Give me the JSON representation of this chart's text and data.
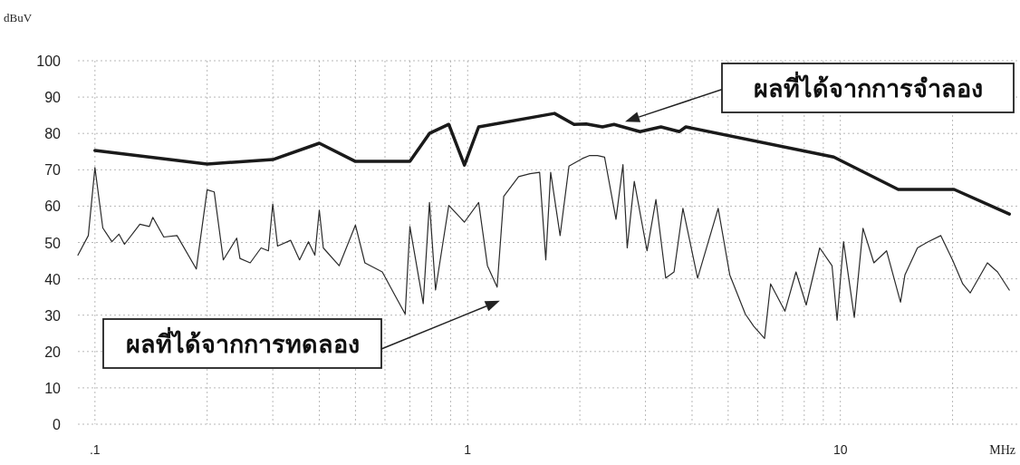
{
  "chart_data": {
    "type": "line",
    "xlabel": "MHz",
    "ylabel": "dBuV",
    "log": "x",
    "grid": true,
    "xlim": [
      0.09,
      30
    ],
    "ylim": [
      0,
      100
    ],
    "xticks": [
      {
        "value": 0.1,
        "label": ".1"
      },
      {
        "value": 0.2,
        "label": null
      },
      {
        "value": 0.3,
        "label": null
      },
      {
        "value": 0.4,
        "label": null
      },
      {
        "value": 0.5,
        "label": null
      },
      {
        "value": 0.6,
        "label": null
      },
      {
        "value": 0.7,
        "label": null
      },
      {
        "value": 0.8,
        "label": null
      },
      {
        "value": 0.9,
        "label": null
      },
      1,
      {
        "value": 2,
        "label": null
      },
      {
        "value": 3,
        "label": null
      },
      {
        "value": 4,
        "label": null
      },
      {
        "value": 5,
        "label": null
      },
      {
        "value": 6,
        "label": null
      },
      {
        "value": 7,
        "label": null
      },
      {
        "value": 8,
        "label": null
      },
      {
        "value": 9,
        "label": null
      },
      10,
      {
        "value": 20,
        "label": null
      }
    ],
    "yticks": [
      0,
      10,
      20,
      30,
      40,
      50,
      60,
      70,
      80,
      90,
      100
    ],
    "series": [
      {
        "name": "ผลที่ได้จากการจำลอง",
        "color": "#1a1a1a",
        "x": [
          0.1,
          0.2,
          0.3,
          0.4,
          0.5,
          0.7,
          0.79,
          0.89,
          0.98,
          1.07,
          1.71,
          1.93,
          2.08,
          2.3,
          2.47,
          2.9,
          3.3,
          3.7,
          3.85,
          9.6,
          14.3,
          20.2,
          28.4
        ],
        "values": [
          75.3,
          71.6,
          72.8,
          77.3,
          72.3,
          72.3,
          80,
          82.5,
          71.3,
          81.8,
          85.5,
          82.5,
          82.6,
          81.8,
          82.5,
          80.5,
          81.8,
          80.5,
          81.8,
          73.5,
          64.6,
          64.6,
          57.8
        ]
      },
      {
        "name": "ผลที่ได้จากการทดลอง",
        "color": "#2b2b2b",
        "x": [
          0.09,
          0.096,
          0.1,
          0.105,
          0.111,
          0.116,
          0.12,
          0.132,
          0.14,
          0.143,
          0.153,
          0.166,
          0.187,
          0.2,
          0.209,
          0.221,
          0.24,
          0.245,
          0.261,
          0.279,
          0.292,
          0.3,
          0.309,
          0.335,
          0.354,
          0.374,
          0.389,
          0.4,
          0.41,
          0.452,
          0.5,
          0.53,
          0.59,
          0.64,
          0.68,
          0.7,
          0.76,
          0.79,
          0.82,
          0.89,
          0.98,
          1.07,
          1.13,
          1.2,
          1.25,
          1.37,
          1.47,
          1.56,
          1.62,
          1.67,
          1.77,
          1.87,
          2.03,
          2.12,
          2.23,
          2.33,
          2.5,
          2.61,
          2.68,
          2.8,
          3.03,
          3.2,
          3.4,
          3.58,
          3.78,
          4.14,
          4.7,
          5.05,
          5.56,
          5.86,
          6.26,
          6.5,
          7.1,
          7.6,
          8.1,
          8.8,
          9.5,
          9.8,
          10.2,
          10.9,
          11.5,
          12.3,
          13.3,
          14.5,
          14.9,
          16.1,
          17.2,
          18.6,
          20,
          21.3,
          22.3,
          24.8,
          26.4,
          28.4
        ],
        "values": [
          46.5,
          51.9,
          70.6,
          54,
          50.2,
          52.3,
          49.5,
          55,
          54.4,
          56.9,
          51.5,
          51.9,
          42.7,
          64.5,
          63.9,
          45.2,
          51.2,
          45.6,
          44.4,
          48.5,
          47.7,
          60.6,
          49,
          50.6,
          45.2,
          50.2,
          46.5,
          58.9,
          48.5,
          43.6,
          54.8,
          44.4,
          41.9,
          35.2,
          30.3,
          54.4,
          33.2,
          61,
          36.9,
          60.2,
          55.6,
          61,
          43.6,
          37.7,
          62.7,
          68.1,
          68.9,
          69.3,
          45.2,
          69.3,
          51.9,
          71,
          73.1,
          73.9,
          73.9,
          73.5,
          56.4,
          71.4,
          48.5,
          66.8,
          47.7,
          61.8,
          40.2,
          41.9,
          59.4,
          40.2,
          59.4,
          41.1,
          30.3,
          26.9,
          23.6,
          38.6,
          31.1,
          41.9,
          32.8,
          48.5,
          43.6,
          28.6,
          50.2,
          29.4,
          53.9,
          44.4,
          47.7,
          33.6,
          41.1,
          48.5,
          50.2,
          51.9,
          45.2,
          38.6,
          36.1,
          44.4,
          41.9,
          36.9
        ]
      }
    ]
  }
}
